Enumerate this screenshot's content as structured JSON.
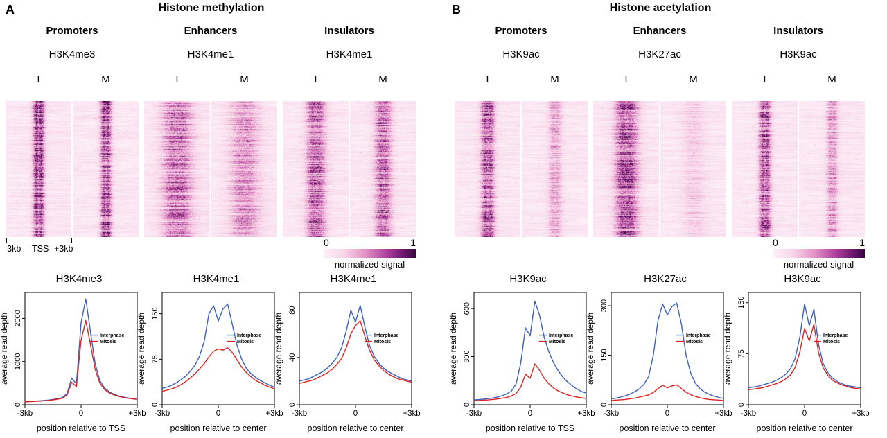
{
  "figure": {
    "panel_a": {
      "label": "A",
      "title": "Histone methylation",
      "columns": [
        {
          "header": "Promoters",
          "mark": "H3K4me3",
          "cond_i": "I",
          "cond_m": "M"
        },
        {
          "header": "Enhancers",
          "mark": "H3K4me1",
          "cond_i": "I",
          "cond_m": "M"
        },
        {
          "header": "Insulators",
          "mark": "H3K4me1",
          "cond_i": "I",
          "cond_m": "M"
        }
      ],
      "axis": {
        "left": "-3kb",
        "center": "TSS",
        "right": "+3kb"
      },
      "colorbar": {
        "min": "0",
        "max": "1",
        "label": "normalized signal"
      }
    },
    "panel_b": {
      "label": "B",
      "title": "Histone acetylation",
      "columns": [
        {
          "header": "Promoters",
          "mark": "H3K9ac",
          "cond_i": "I",
          "cond_m": "M"
        },
        {
          "header": "Enhancers",
          "mark": "H3K27ac",
          "cond_i": "I",
          "cond_m": "M"
        },
        {
          "header": "Insulators",
          "mark": "H3K9ac",
          "cond_i": "I",
          "cond_m": "M"
        }
      ],
      "colorbar": {
        "min": "0",
        "max": "1",
        "label": "normalized signal"
      }
    },
    "legend": {
      "interphase": "Interphase",
      "mitosis": "Mitosis"
    },
    "colors": {
      "interphase": "#3c5fc0",
      "mitosis": "#dd2222",
      "heat_low": "#fdf2f9",
      "heat_high": "#38083e"
    }
  },
  "chart_data": [
    {
      "id": "heat-a-promoters",
      "type": "heatmap",
      "region": "Promoters",
      "mark": "H3K4me3",
      "x_range": [
        "-3kb",
        "+3kb"
      ],
      "x_center": "TSS",
      "value_range": [
        0,
        1
      ],
      "value_label": "normalized signal",
      "halves": [
        {
          "label": "I",
          "peak_amp": 1.0,
          "peak_width": 0.055,
          "center_dip": 0.45
        },
        {
          "label": "M",
          "peak_amp": 0.92,
          "peak_width": 0.055,
          "center_dip": 0.35
        }
      ]
    },
    {
      "id": "heat-a-enhancers",
      "type": "heatmap",
      "region": "Enhancers",
      "mark": "H3K4me1",
      "x_range": [
        "-3kb",
        "+3kb"
      ],
      "x_center": "center",
      "value_range": [
        0,
        1
      ],
      "value_label": "normalized signal",
      "halves": [
        {
          "label": "I",
          "peak_amp": 0.62,
          "peak_width": 0.16,
          "center_dip": 0.15
        },
        {
          "label": "M",
          "peak_amp": 0.45,
          "peak_width": 0.16,
          "center_dip": 0.1
        }
      ]
    },
    {
      "id": "heat-a-insulators",
      "type": "heatmap",
      "region": "Insulators",
      "mark": "H3K4me1",
      "x_range": [
        "-3kb",
        "+3kb"
      ],
      "x_center": "center",
      "value_range": [
        0,
        1
      ],
      "value_label": "normalized signal",
      "halves": [
        {
          "label": "I",
          "peak_amp": 0.72,
          "peak_width": 0.1,
          "center_dip": 0.2
        },
        {
          "label": "M",
          "peak_amp": 0.68,
          "peak_width": 0.09,
          "center_dip": 0.15
        }
      ]
    },
    {
      "id": "heat-b-promoters",
      "type": "heatmap",
      "region": "Promoters",
      "mark": "H3K9ac",
      "x_range": [
        "-3kb",
        "+3kb"
      ],
      "x_center": "TSS",
      "value_range": [
        0,
        1
      ],
      "value_label": "normalized signal",
      "halves": [
        {
          "label": "I",
          "peak_amp": 0.85,
          "peak_width": 0.07,
          "center_dip": 0.3
        },
        {
          "label": "M",
          "peak_amp": 0.4,
          "peak_width": 0.07,
          "center_dip": 0.2
        }
      ]
    },
    {
      "id": "heat-b-enhancers",
      "type": "heatmap",
      "region": "Enhancers",
      "mark": "H3K27ac",
      "x_range": [
        "-3kb",
        "+3kb"
      ],
      "x_center": "center",
      "value_range": [
        0,
        1
      ],
      "value_label": "normalized signal",
      "halves": [
        {
          "label": "I",
          "peak_amp": 0.8,
          "peak_width": 0.12,
          "center_dip": 0.2
        },
        {
          "label": "M",
          "peak_amp": 0.2,
          "peak_width": 0.12,
          "center_dip": 0.1
        }
      ]
    },
    {
      "id": "heat-b-insulators",
      "type": "heatmap",
      "region": "Insulators",
      "mark": "H3K9ac",
      "x_range": [
        "-3kb",
        "+3kb"
      ],
      "x_center": "center",
      "value_range": [
        0,
        1
      ],
      "value_label": "normalized signal",
      "halves": [
        {
          "label": "I",
          "peak_amp": 0.8,
          "peak_width": 0.06,
          "center_dip": 0.3
        },
        {
          "label": "M",
          "peak_amp": 0.45,
          "peak_width": 0.06,
          "center_dip": 0.2
        }
      ]
    },
    {
      "id": "profile-a-promoters",
      "type": "line",
      "title": "H3K4me3",
      "xlabel": "position relative to TSS",
      "ylabel": "average read depth",
      "xlim": [
        -3,
        3
      ],
      "ylim": [
        0,
        2600
      ],
      "xticks": [
        -3,
        0,
        3
      ],
      "xtick_labels": [
        "-3kb",
        "0",
        "+3kb"
      ],
      "yticks": [
        0,
        1000,
        2000
      ],
      "x": [
        -3,
        -2.75,
        -2.5,
        -2.25,
        -2,
        -1.75,
        -1.5,
        -1.25,
        -1,
        -0.75,
        -0.5,
        -0.25,
        0,
        0.25,
        0.5,
        0.75,
        1,
        1.25,
        1.5,
        1.75,
        2,
        2.25,
        2.5,
        2.75,
        3
      ],
      "series": [
        {
          "name": "Interphase",
          "color": "#3c5fc0",
          "values": [
            70,
            75,
            80,
            88,
            96,
            108,
            122,
            140,
            165,
            260,
            620,
            480,
            1900,
            2450,
            1700,
            950,
            560,
            390,
            300,
            245,
            205,
            178,
            158,
            142,
            130
          ]
        },
        {
          "name": "Mitosis",
          "color": "#dd2222",
          "values": [
            65,
            70,
            75,
            82,
            90,
            100,
            112,
            128,
            150,
            230,
            520,
            420,
            1500,
            1950,
            1400,
            820,
            500,
            355,
            275,
            228,
            192,
            168,
            150,
            136,
            125
          ]
        }
      ]
    },
    {
      "id": "profile-a-enhancers",
      "type": "line",
      "title": "H3K4me1",
      "xlabel": "position relative to center",
      "ylabel": "average read depth",
      "xlim": [
        -3,
        3
      ],
      "ylim": [
        0,
        185
      ],
      "xticks": [
        -3,
        0,
        3
      ],
      "xtick_labels": [
        "-3kb",
        "0",
        "+3kb"
      ],
      "yticks": [
        0,
        75,
        150
      ],
      "x": [
        -3,
        -2.75,
        -2.5,
        -2.25,
        -2,
        -1.75,
        -1.5,
        -1.25,
        -1,
        -0.75,
        -0.5,
        -0.25,
        0,
        0.25,
        0.5,
        0.75,
        1,
        1.25,
        1.5,
        1.75,
        2,
        2.25,
        2.5,
        2.75,
        3
      ],
      "series": [
        {
          "name": "Interphase",
          "color": "#3c5fc0",
          "values": [
            27,
            29,
            32,
            36,
            41,
            47,
            55,
            65,
            80,
            105,
            150,
            163,
            138,
            158,
            166,
            132,
            98,
            75,
            60,
            51,
            45,
            40,
            36,
            32,
            29
          ]
        },
        {
          "name": "Mitosis",
          "color": "#dd2222",
          "values": [
            22,
            24,
            26,
            29,
            33,
            38,
            44,
            51,
            59,
            68,
            79,
            88,
            92,
            90,
            94,
            86,
            74,
            62,
            53,
            46,
            40,
            36,
            32,
            29,
            26
          ]
        }
      ]
    },
    {
      "id": "profile-a-insulators",
      "type": "line",
      "title": "H3K4me1",
      "xlabel": "position relative to center",
      "ylabel": "average read depth",
      "xlim": [
        -3,
        3
      ],
      "ylim": [
        0,
        95
      ],
      "xticks": [
        -3,
        0,
        3
      ],
      "xtick_labels": [
        "-3kb",
        "0",
        "+3kb"
      ],
      "yticks": [
        0,
        40,
        80
      ],
      "x": [
        -3,
        -2.75,
        -2.5,
        -2.25,
        -2,
        -1.75,
        -1.5,
        -1.25,
        -1,
        -0.75,
        -0.5,
        -0.25,
        0,
        0.25,
        0.5,
        0.75,
        1,
        1.25,
        1.5,
        1.75,
        2,
        2.25,
        2.5,
        2.75,
        3
      ],
      "series": [
        {
          "name": "Interphase",
          "color": "#3c5fc0",
          "values": [
            20,
            21,
            22,
            24,
            26,
            28,
            31,
            35,
            40,
            48,
            62,
            80,
            70,
            84,
            66,
            50,
            41,
            35,
            31,
            28,
            26,
            24,
            22,
            21,
            20
          ]
        },
        {
          "name": "Mitosis",
          "color": "#dd2222",
          "values": [
            18,
            19,
            20,
            21,
            23,
            25,
            27,
            30,
            34,
            39,
            48,
            60,
            67,
            71,
            58,
            46,
            38,
            33,
            29,
            26,
            24,
            22,
            21,
            20,
            19
          ]
        }
      ]
    },
    {
      "id": "profile-b-promoters",
      "type": "line",
      "title": "H3K9ac",
      "xlabel": "position relative to TSS",
      "ylabel": "average read depth",
      "xlim": [
        -3,
        3
      ],
      "ylim": [
        0,
        700
      ],
      "xticks": [
        -3,
        0,
        3
      ],
      "xtick_labels": [
        "-3kb",
        "0",
        "+3kb"
      ],
      "yticks": [
        0,
        300,
        600
      ],
      "x": [
        -3,
        -2.75,
        -2.5,
        -2.25,
        -2,
        -1.75,
        -1.5,
        -1.25,
        -1,
        -0.75,
        -0.5,
        -0.25,
        0,
        0.25,
        0.5,
        0.75,
        1,
        1.25,
        1.5,
        1.75,
        2,
        2.25,
        2.5,
        2.75,
        3
      ],
      "series": [
        {
          "name": "Interphase",
          "color": "#3c5fc0",
          "values": [
            30,
            32,
            35,
            38,
            42,
            48,
            56,
            68,
            85,
            130,
            260,
            480,
            430,
            645,
            560,
            420,
            330,
            262,
            212,
            172,
            142,
            118,
            98,
            82,
            72
          ]
        },
        {
          "name": "Mitosis",
          "color": "#dd2222",
          "values": [
            25,
            26,
            28,
            30,
            33,
            36,
            40,
            46,
            55,
            70,
            110,
            190,
            165,
            255,
            215,
            165,
            130,
            104,
            86,
            73,
            62,
            54,
            48,
            43,
            39
          ]
        }
      ]
    },
    {
      "id": "profile-b-enhancers",
      "type": "line",
      "title": "H3K27ac",
      "xlabel": "position relative to center",
      "ylabel": "average read depth",
      "xlim": [
        -3,
        3
      ],
      "ylim": [
        0,
        340
      ],
      "xticks": [
        -3,
        0,
        3
      ],
      "xtick_labels": [
        "-3kb",
        "0",
        "+3kb"
      ],
      "yticks": [
        0,
        150,
        300
      ],
      "x": [
        -3,
        -2.75,
        -2.5,
        -2.25,
        -2,
        -1.75,
        -1.5,
        -1.25,
        -1,
        -0.75,
        -0.5,
        -0.25,
        0,
        0.25,
        0.5,
        0.75,
        1,
        1.25,
        1.5,
        1.75,
        2,
        2.25,
        2.5,
        2.75,
        3
      ],
      "series": [
        {
          "name": "Interphase",
          "color": "#3c5fc0",
          "values": [
            18,
            20,
            23,
            27,
            32,
            39,
            48,
            62,
            85,
            150,
            255,
            305,
            272,
            298,
            308,
            245,
            150,
            95,
            65,
            48,
            38,
            31,
            26,
            22,
            19
          ]
        },
        {
          "name": "Mitosis",
          "color": "#dd2222",
          "values": [
            13,
            14,
            15,
            16,
            18,
            20,
            23,
            26,
            30,
            37,
            49,
            59,
            51,
            57,
            60,
            49,
            38,
            30,
            25,
            21,
            18,
            16,
            15,
            14,
            13
          ]
        }
      ]
    },
    {
      "id": "profile-b-insulators",
      "type": "line",
      "title": "H3K9ac",
      "xlabel": "position relative to center",
      "ylabel": "average read depth",
      "xlim": [
        -3,
        3
      ],
      "ylim": [
        0,
        165
      ],
      "xticks": [
        -3,
        0,
        3
      ],
      "xtick_labels": [
        "-3kb",
        "0",
        "+3kb"
      ],
      "yticks": [
        0,
        75,
        150
      ],
      "x": [
        -3,
        -2.75,
        -2.5,
        -2.25,
        -2,
        -1.75,
        -1.5,
        -1.25,
        -1,
        -0.75,
        -0.5,
        -0.25,
        0,
        0.25,
        0.5,
        0.75,
        1,
        1.25,
        1.5,
        1.75,
        2,
        2.25,
        2.5,
        2.75,
        3
      ],
      "series": [
        {
          "name": "Interphase",
          "color": "#3c5fc0",
          "values": [
            25,
            26,
            27,
            29,
            31,
            33,
            36,
            40,
            45,
            53,
            68,
            100,
            148,
            116,
            140,
            88,
            60,
            47,
            39,
            34,
            31,
            28,
            27,
            26,
            25
          ]
        },
        {
          "name": "Mitosis",
          "color": "#dd2222",
          "values": [
            22,
            23,
            24,
            25,
            27,
            29,
            31,
            34,
            38,
            44,
            55,
            78,
            112,
            94,
            118,
            76,
            54,
            43,
            36,
            32,
            29,
            27,
            25,
            24,
            23
          ]
        }
      ]
    }
  ]
}
